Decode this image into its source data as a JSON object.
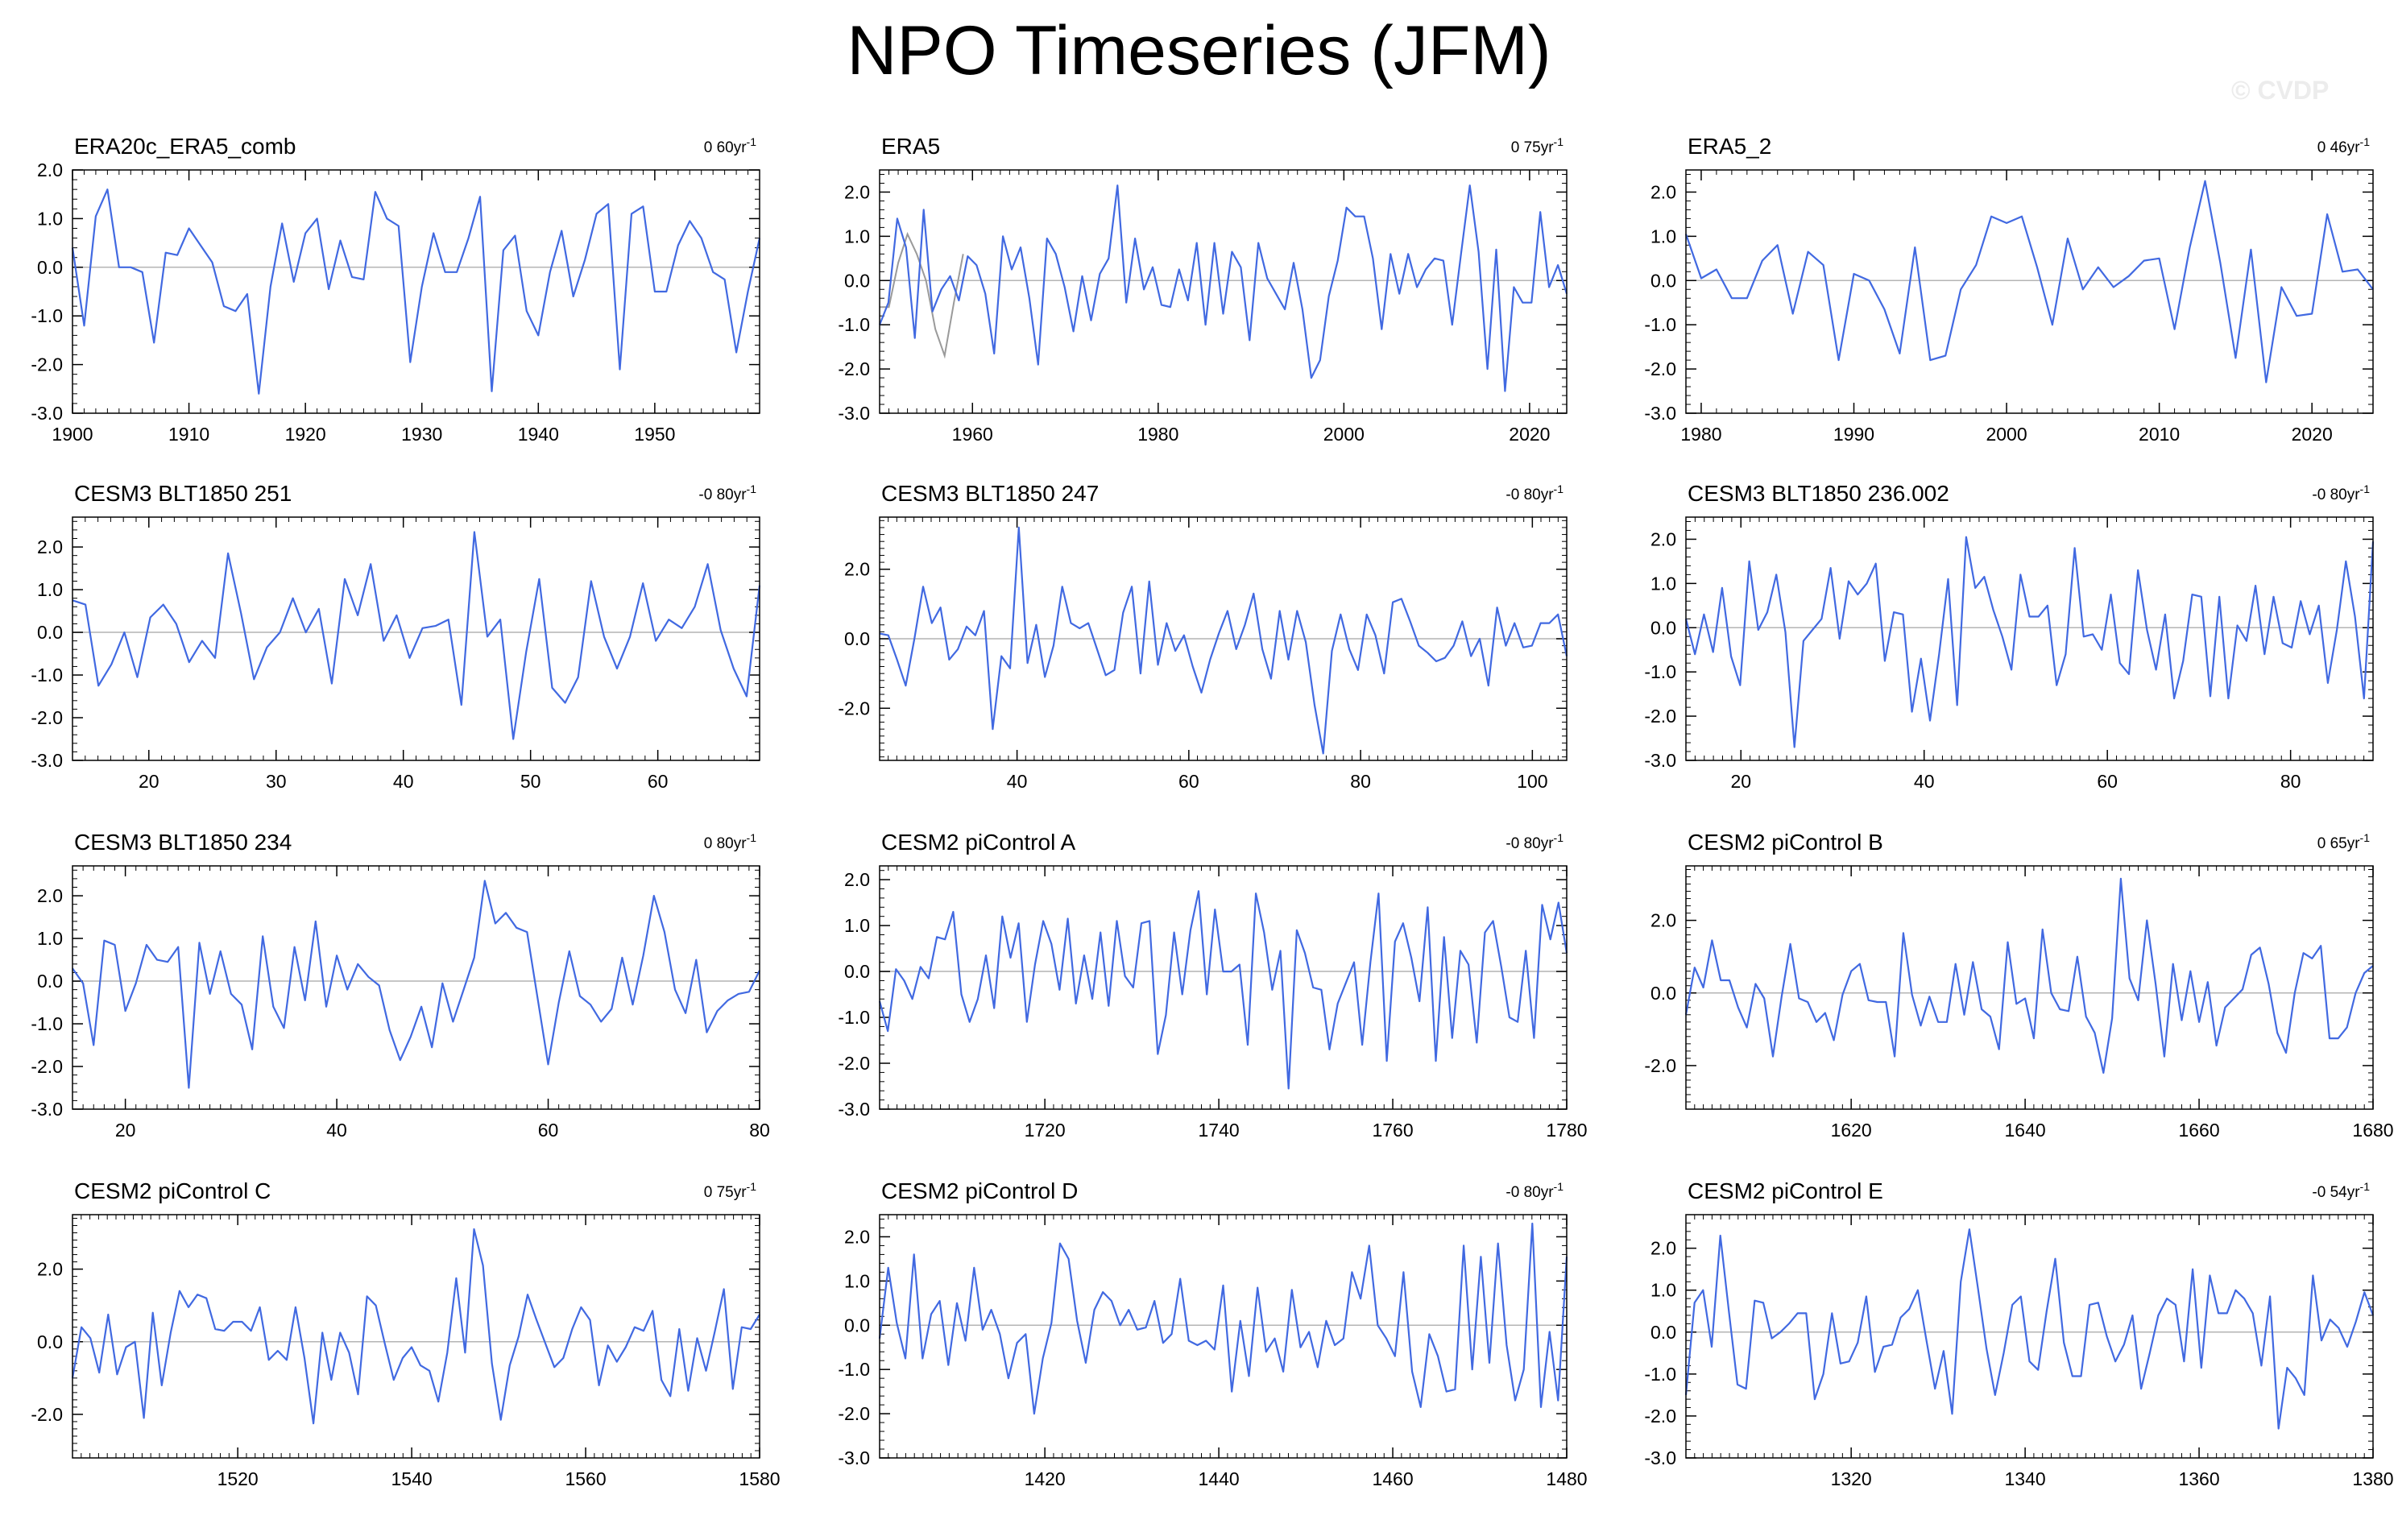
{
  "title": "NPO Timeseries (JFM)",
  "watermark": "© CVDP",
  "colors": {
    "line": "#4169e1",
    "overlay": "#9a9a9a",
    "zero": "#b4b4b4",
    "axis": "#000000"
  },
  "chart_data": [
    {
      "type": "line",
      "title": "ERA20c_ERA5_comb",
      "trend": "0 60yr",
      "trend_unit": "-1",
      "xlim": [
        1900,
        1959
      ],
      "ylim": [
        -3,
        2
      ],
      "xticks": [
        1900,
        1910,
        1920,
        1930,
        1940,
        1950
      ],
      "yticks": [
        "2.0",
        "1.0",
        "0.0",
        "-1.0",
        "-2.0",
        "-3.0"
      ],
      "y": [
        0.4,
        -1.2,
        1.05,
        1.6,
        0.0,
        0.0,
        -0.1,
        -1.55,
        0.3,
        0.25,
        0.8,
        0.45,
        0.1,
        -0.8,
        -0.9,
        -0.55,
        -2.6,
        -0.4,
        0.9,
        -0.3,
        0.7,
        1.0,
        -0.45,
        0.55,
        -0.2,
        -0.25,
        1.55,
        1.0,
        0.85,
        -1.95,
        -0.4,
        0.7,
        -0.1,
        -0.1,
        0.6,
        1.45,
        -2.55,
        0.35,
        0.65,
        -0.9,
        -1.4,
        -0.1,
        0.75,
        -0.6,
        0.15,
        1.1,
        1.3,
        -2.1,
        1.1,
        1.25,
        -0.5,
        -0.5,
        0.45,
        0.95,
        0.6,
        -0.1,
        -0.25,
        -1.75,
        -0.5,
        0.6
      ]
    },
    {
      "type": "line",
      "title": "ERA5",
      "trend": "0 75yr",
      "trend_unit": "-1",
      "xlim": [
        1950,
        2024
      ],
      "ylim": [
        -3,
        2.5
      ],
      "xticks": [
        1960,
        1980,
        2000,
        2020
      ],
      "yticks": [
        "2.0",
        "1.0",
        "0.0",
        "-1.0",
        "-2.0",
        "-3.0"
      ],
      "y": [
        -1.0,
        -0.5,
        1.4,
        0.75,
        -1.3,
        1.6,
        -0.7,
        -0.2,
        0.1,
        -0.45,
        0.55,
        0.35,
        -0.3,
        -1.65,
        1.0,
        0.25,
        0.75,
        -0.4,
        -1.9,
        0.95,
        0.6,
        -0.15,
        -1.15,
        0.1,
        -0.9,
        0.15,
        0.5,
        2.15,
        -0.5,
        0.95,
        -0.2,
        0.3,
        -0.55,
        -0.6,
        0.25,
        -0.45,
        0.85,
        -1.0,
        0.85,
        -0.75,
        0.65,
        0.3,
        -1.35,
        0.85,
        0.05,
        -0.3,
        -0.65,
        0.4,
        -0.65,
        -2.2,
        -1.8,
        -0.35,
        0.45,
        1.65,
        1.45,
        1.45,
        0.5,
        -1.1,
        0.6,
        -0.3,
        0.6,
        -0.15,
        0.25,
        0.5,
        0.45,
        -1.0,
        0.6,
        2.15,
        0.65,
        -2.0,
        0.7,
        -2.5,
        -0.15,
        -0.5,
        -0.5,
        1.55,
        -0.15,
        0.35,
        -0.3
      ],
      "overlay": {
        "x": [
          1950,
          1951,
          1952,
          1953,
          1954,
          1955,
          1956,
          1957,
          1958,
          1959
        ],
        "y": [
          -0.6,
          -0.6,
          0.4,
          1.05,
          0.6,
          0.0,
          -1.1,
          -1.7,
          -0.5,
          0.6
        ]
      }
    },
    {
      "type": "line",
      "title": "ERA5_2",
      "trend": "0 46yr",
      "trend_unit": "-1",
      "xlim": [
        1979,
        2024
      ],
      "ylim": [
        -3,
        2.5
      ],
      "xticks": [
        1980,
        1990,
        2000,
        2010,
        2020
      ],
      "yticks": [
        "2.0",
        "1.0",
        "0.0",
        "-1.0",
        "-2.0",
        "-3.0"
      ],
      "y": [
        1.05,
        0.05,
        0.25,
        -0.4,
        -0.4,
        0.45,
        0.8,
        -0.75,
        0.65,
        0.35,
        -1.8,
        0.15,
        0.0,
        -0.65,
        -1.65,
        0.75,
        -1.8,
        -1.7,
        -0.2,
        0.35,
        1.45,
        1.3,
        1.45,
        0.3,
        -1.0,
        0.95,
        -0.2,
        0.3,
        -0.15,
        0.1,
        0.45,
        0.5,
        -1.1,
        0.75,
        2.25,
        0.4,
        -1.75,
        0.7,
        -2.3,
        -0.15,
        -0.8,
        -0.75,
        1.5,
        0.2,
        0.25,
        -0.2
      ]
    },
    {
      "type": "line",
      "title": "CESM3 BLT1850 251",
      "trend": "-0 80yr",
      "trend_unit": "-1",
      "xlim": [
        14,
        68
      ],
      "ylim": [
        -3,
        2.7
      ],
      "xticks": [
        20,
        30,
        40,
        50,
        60
      ],
      "yticks": [
        "2.0",
        "1.0",
        "0.0",
        "-1.0",
        "-2.0",
        "-3.0"
      ],
      "y": [
        0.75,
        0.65,
        -1.25,
        -0.75,
        0.0,
        -1.05,
        0.35,
        0.65,
        0.2,
        -0.7,
        -0.2,
        -0.6,
        1.85,
        0.45,
        -1.1,
        -0.35,
        0.0,
        0.8,
        0.0,
        0.55,
        -1.2,
        1.25,
        0.4,
        1.6,
        -0.2,
        0.4,
        -0.6,
        0.1,
        0.15,
        0.3,
        -1.7,
        2.35,
        -0.1,
        0.3,
        -2.5,
        -0.45,
        1.25,
        -1.3,
        -1.65,
        -1.05,
        1.2,
        -0.1,
        -0.85,
        -0.1,
        1.15,
        -0.2,
        0.3,
        0.1,
        0.6,
        1.6,
        0.05,
        -0.85,
        -1.5,
        1.1
      ]
    },
    {
      "type": "line",
      "title": "CESM3 BLT1850 247",
      "trend": "-0 80yr",
      "trend_unit": "-1",
      "xlim": [
        24,
        104
      ],
      "ylim": [
        -3.5,
        3.5
      ],
      "xticks": [
        40,
        60,
        80,
        100
      ],
      "yticks": [
        "2.0",
        "0.0",
        "-2.0"
      ],
      "y": [
        0.15,
        0.1,
        -0.6,
        -1.35,
        0.0,
        1.5,
        0.45,
        0.9,
        -0.6,
        -0.3,
        0.35,
        0.1,
        0.8,
        -2.6,
        -0.5,
        -0.85,
        3.2,
        -0.7,
        0.4,
        -1.1,
        -0.2,
        1.5,
        0.45,
        0.3,
        0.45,
        -0.3,
        -1.05,
        -0.9,
        0.75,
        1.5,
        -1.0,
        1.65,
        -0.75,
        0.45,
        -0.35,
        0.1,
        -0.8,
        -1.55,
        -0.6,
        0.15,
        0.8,
        -0.3,
        0.4,
        1.3,
        -0.3,
        -1.15,
        0.8,
        -0.6,
        0.8,
        -0.1,
        -1.9,
        -3.3,
        -0.35,
        0.7,
        -0.3,
        -0.9,
        0.7,
        0.1,
        -1.0,
        1.05,
        1.15,
        0.5,
        -0.2,
        -0.4,
        -0.65,
        -0.55,
        -0.2,
        0.5,
        -0.5,
        0.0,
        -1.35,
        0.9,
        -0.2,
        0.45,
        -0.25,
        -0.2,
        0.45,
        0.45,
        0.7,
        -0.5
      ]
    },
    {
      "type": "line",
      "title": "CESM3 BLT1850 236.002",
      "trend": "-0 80yr",
      "trend_unit": "-1",
      "xlim": [
        14,
        89
      ],
      "ylim": [
        -3,
        2.5
      ],
      "xticks": [
        20,
        40,
        60,
        80
      ],
      "yticks": [
        "2.0",
        "1.0",
        "0.0",
        "-1.0",
        "-2.0",
        "-3.0"
      ],
      "y": [
        0.2,
        -0.6,
        0.3,
        -0.55,
        0.9,
        -0.65,
        -1.3,
        1.5,
        -0.05,
        0.35,
        1.2,
        -0.1,
        -2.7,
        -0.3,
        -0.05,
        0.2,
        1.35,
        -0.25,
        1.05,
        0.75,
        1.0,
        1.45,
        -0.75,
        0.35,
        0.3,
        -1.9,
        -0.7,
        -2.1,
        -0.6,
        1.1,
        -1.75,
        2.05,
        0.9,
        1.15,
        0.4,
        -0.2,
        -0.95,
        1.2,
        0.25,
        0.25,
        0.5,
        -1.3,
        -0.6,
        1.8,
        -0.2,
        -0.15,
        -0.5,
        0.75,
        -0.8,
        -1.05,
        1.3,
        -0.05,
        -0.95,
        0.3,
        -1.6,
        -0.75,
        0.75,
        0.7,
        -1.55,
        0.7,
        -1.6,
        0.05,
        -0.3,
        0.95,
        -0.6,
        0.7,
        -0.35,
        -0.45,
        0.6,
        -0.15,
        0.5,
        -1.25,
        -0.05,
        1.5,
        0.25,
        -1.6,
        1.95
      ]
    },
    {
      "type": "line",
      "title": "CESM3 BLT1850 234",
      "trend": "0 80yr",
      "trend_unit": "-1",
      "xlim": [
        15,
        80
      ],
      "ylim": [
        -3,
        2.7
      ],
      "xticks": [
        20,
        40,
        60,
        80
      ],
      "yticks": [
        "2.0",
        "1.0",
        "0.0",
        "-1.0",
        "-2.0",
        "-3.0"
      ],
      "y": [
        0.3,
        -0.05,
        -1.5,
        0.95,
        0.85,
        -0.7,
        -0.05,
        0.85,
        0.5,
        0.45,
        0.8,
        -2.5,
        0.9,
        -0.3,
        0.7,
        -0.3,
        -0.55,
        -1.6,
        1.05,
        -0.6,
        -1.1,
        0.8,
        -0.45,
        1.4,
        -0.6,
        0.6,
        -0.2,
        0.4,
        0.1,
        -0.1,
        -1.15,
        -1.85,
        -1.3,
        -0.6,
        -1.55,
        -0.05,
        -0.95,
        -0.2,
        0.55,
        2.35,
        1.35,
        1.6,
        1.25,
        1.15,
        -0.4,
        -1.95,
        -0.5,
        0.7,
        -0.35,
        -0.55,
        -0.95,
        -0.65,
        0.55,
        -0.55,
        0.6,
        2.0,
        1.15,
        -0.2,
        -0.75,
        0.5,
        -1.2,
        -0.7,
        -0.45,
        -0.3,
        -0.25,
        0.25
      ]
    },
    {
      "type": "line",
      "title": "CESM2 piControl A",
      "trend": "-0 80yr",
      "trend_unit": "-1",
      "xlim": [
        1701,
        1780
      ],
      "ylim": [
        -3,
        2.3
      ],
      "xticks": [
        1720,
        1740,
        1760,
        1780
      ],
      "yticks": [
        "2.0",
        "1.0",
        "0.0",
        "-1.0",
        "-2.0",
        "-3.0"
      ],
      "y": [
        -0.65,
        -1.3,
        0.05,
        -0.2,
        -0.6,
        0.1,
        -0.15,
        0.75,
        0.7,
        1.3,
        -0.5,
        -1.1,
        -0.6,
        0.35,
        -0.8,
        1.2,
        0.3,
        1.05,
        -1.1,
        0.15,
        1.1,
        0.6,
        -0.4,
        1.15,
        -0.7,
        0.35,
        -0.6,
        0.85,
        -0.75,
        1.1,
        -0.1,
        -0.35,
        1.05,
        1.1,
        -1.8,
        -0.95,
        0.85,
        -0.5,
        0.9,
        1.75,
        -0.5,
        1.35,
        0.0,
        0.0,
        0.15,
        -1.6,
        1.7,
        0.85,
        -0.4,
        0.45,
        -2.55,
        0.9,
        0.4,
        -0.35,
        -0.4,
        -1.7,
        -0.7,
        -0.25,
        0.2,
        -1.6,
        0.2,
        1.7,
        -1.95,
        0.65,
        1.05,
        0.3,
        -0.65,
        1.4,
        -1.95,
        0.75,
        -1.45,
        0.45,
        0.15,
        -1.55,
        0.85,
        1.1,
        0.1,
        -1.0,
        -1.1,
        0.45,
        -1.45,
        1.45,
        0.7,
        1.5,
        0.4
      ]
    },
    {
      "type": "line",
      "title": "CESM2 piControl B",
      "trend": "0 65yr",
      "trend_unit": "-1",
      "xlim": [
        1601,
        1680
      ],
      "ylim": [
        -3.2,
        3.5
      ],
      "xticks": [
        1620,
        1640,
        1660,
        1680
      ],
      "yticks": [
        "2.0",
        "0.0",
        "-2.0"
      ],
      "y": [
        -0.6,
        0.7,
        0.15,
        1.45,
        0.35,
        0.35,
        -0.4,
        -0.95,
        0.25,
        -0.15,
        -1.75,
        -0.1,
        1.35,
        -0.15,
        -0.25,
        -0.8,
        -0.55,
        -1.3,
        -0.05,
        0.6,
        0.8,
        -0.2,
        -0.25,
        -0.25,
        -1.75,
        1.65,
        -0.05,
        -0.9,
        -0.1,
        -0.8,
        -0.8,
        0.8,
        -0.6,
        0.85,
        -0.45,
        -0.65,
        -1.55,
        1.4,
        -0.3,
        -0.15,
        -1.25,
        1.75,
        0.0,
        -0.45,
        -0.5,
        1.0,
        -0.65,
        -1.1,
        -2.2,
        -0.7,
        3.15,
        0.4,
        -0.2,
        2.0,
        0.25,
        -1.75,
        0.8,
        -0.75,
        0.6,
        -0.8,
        0.3,
        -1.45,
        -0.4,
        -0.15,
        0.1,
        1.05,
        1.25,
        0.25,
        -1.1,
        -1.65,
        0.0,
        1.1,
        0.95,
        1.3,
        -1.25,
        -1.25,
        -0.95,
        0.0,
        0.55,
        0.75
      ]
    },
    {
      "type": "line",
      "title": "CESM2 piControl C",
      "trend": "0 75yr",
      "trend_unit": "-1",
      "xlim": [
        1501,
        1580
      ],
      "ylim": [
        -3.2,
        3.5
      ],
      "xticks": [
        1520,
        1540,
        1560,
        1580
      ],
      "yticks": [
        "2.0",
        "0.0",
        "-2.0"
      ],
      "y": [
        -1.0,
        0.4,
        0.1,
        -0.85,
        0.75,
        -0.9,
        -0.15,
        0.0,
        -2.1,
        0.8,
        -1.2,
        0.25,
        1.4,
        0.95,
        1.3,
        1.2,
        0.35,
        0.3,
        0.55,
        0.55,
        0.3,
        0.95,
        -0.5,
        -0.25,
        -0.5,
        0.95,
        -0.45,
        -2.25,
        0.25,
        -1.05,
        0.25,
        -0.3,
        -1.45,
        1.25,
        1.0,
        -0.05,
        -1.05,
        -0.45,
        -0.15,
        -0.65,
        -0.8,
        -1.65,
        -0.3,
        1.75,
        -0.3,
        3.1,
        2.1,
        -0.6,
        -2.15,
        -0.65,
        0.15,
        1.3,
        0.6,
        -0.05,
        -0.7,
        -0.45,
        0.35,
        0.95,
        0.6,
        -1.2,
        -0.1,
        -0.55,
        -0.15,
        0.4,
        0.3,
        0.85,
        -1.05,
        -1.5,
        0.35,
        -1.35,
        0.1,
        -0.8,
        0.3,
        1.45,
        -1.3,
        0.4,
        0.35,
        0.75
      ]
    },
    {
      "type": "line",
      "title": "CESM2 piControl D",
      "trend": "-0 80yr",
      "trend_unit": "-1",
      "xlim": [
        1401,
        1480
      ],
      "ylim": [
        -3,
        2.5
      ],
      "xticks": [
        1420,
        1440,
        1460,
        1480
      ],
      "yticks": [
        "2.0",
        "1.0",
        "0.0",
        "-1.0",
        "-2.0",
        "-3.0"
      ],
      "y": [
        -0.3,
        1.3,
        0.05,
        -0.75,
        1.6,
        -0.75,
        0.25,
        0.55,
        -0.9,
        0.5,
        -0.35,
        1.3,
        -0.1,
        0.35,
        -0.2,
        -1.2,
        -0.4,
        -0.2,
        -2.0,
        -0.75,
        0.05,
        1.85,
        1.5,
        0.1,
        -0.85,
        0.35,
        0.75,
        0.55,
        0.0,
        0.35,
        -0.1,
        -0.05,
        0.55,
        -0.4,
        -0.2,
        1.05,
        -0.35,
        -0.45,
        -0.35,
        -0.55,
        0.9,
        -1.5,
        0.1,
        -1.15,
        0.85,
        -0.6,
        -0.3,
        -1.05,
        0.8,
        -0.5,
        -0.15,
        -0.95,
        0.1,
        -0.45,
        -0.3,
        1.2,
        0.6,
        1.8,
        0.0,
        -0.3,
        -0.7,
        1.2,
        -1.05,
        -1.85,
        -0.2,
        -0.7,
        -1.5,
        -1.45,
        1.8,
        -1.0,
        1.55,
        -0.85,
        1.85,
        -0.45,
        -1.7,
        -1.0,
        2.3,
        -1.85,
        -0.15,
        -1.7,
        1.55
      ]
    },
    {
      "type": "line",
      "title": "CESM2 piControl E",
      "trend": "-0 54yr",
      "trend_unit": "-1",
      "xlim": [
        1301,
        1380
      ],
      "ylim": [
        -3,
        2.8
      ],
      "xticks": [
        1320,
        1340,
        1360,
        1380
      ],
      "yticks": [
        "2.0",
        "1.0",
        "0.0",
        "-1.0",
        "-2.0",
        "-3.0"
      ],
      "y": [
        -1.5,
        0.7,
        1.0,
        -0.35,
        2.3,
        0.5,
        -1.25,
        -1.35,
        0.75,
        0.7,
        -0.15,
        0.0,
        0.2,
        0.45,
        0.45,
        -1.6,
        -1.0,
        0.45,
        -0.75,
        -0.7,
        -0.25,
        0.85,
        -0.95,
        -0.35,
        -0.3,
        0.35,
        0.55,
        1.0,
        -0.2,
        -1.35,
        -0.45,
        -1.95,
        1.2,
        2.45,
        1.05,
        -0.4,
        -1.5,
        -0.5,
        0.65,
        0.85,
        -0.7,
        -0.9,
        0.5,
        1.75,
        -0.25,
        -1.05,
        -1.05,
        0.65,
        0.7,
        -0.1,
        -0.7,
        -0.3,
        0.4,
        -1.35,
        -0.5,
        0.4,
        0.8,
        0.65,
        -0.7,
        1.5,
        -0.85,
        1.35,
        0.45,
        0.45,
        1.0,
        0.8,
        0.45,
        -0.8,
        0.85,
        -2.3,
        -0.85,
        -1.1,
        -1.5,
        1.35,
        -0.2,
        0.3,
        0.1,
        -0.35,
        0.25,
        0.95,
        0.4
      ]
    }
  ]
}
